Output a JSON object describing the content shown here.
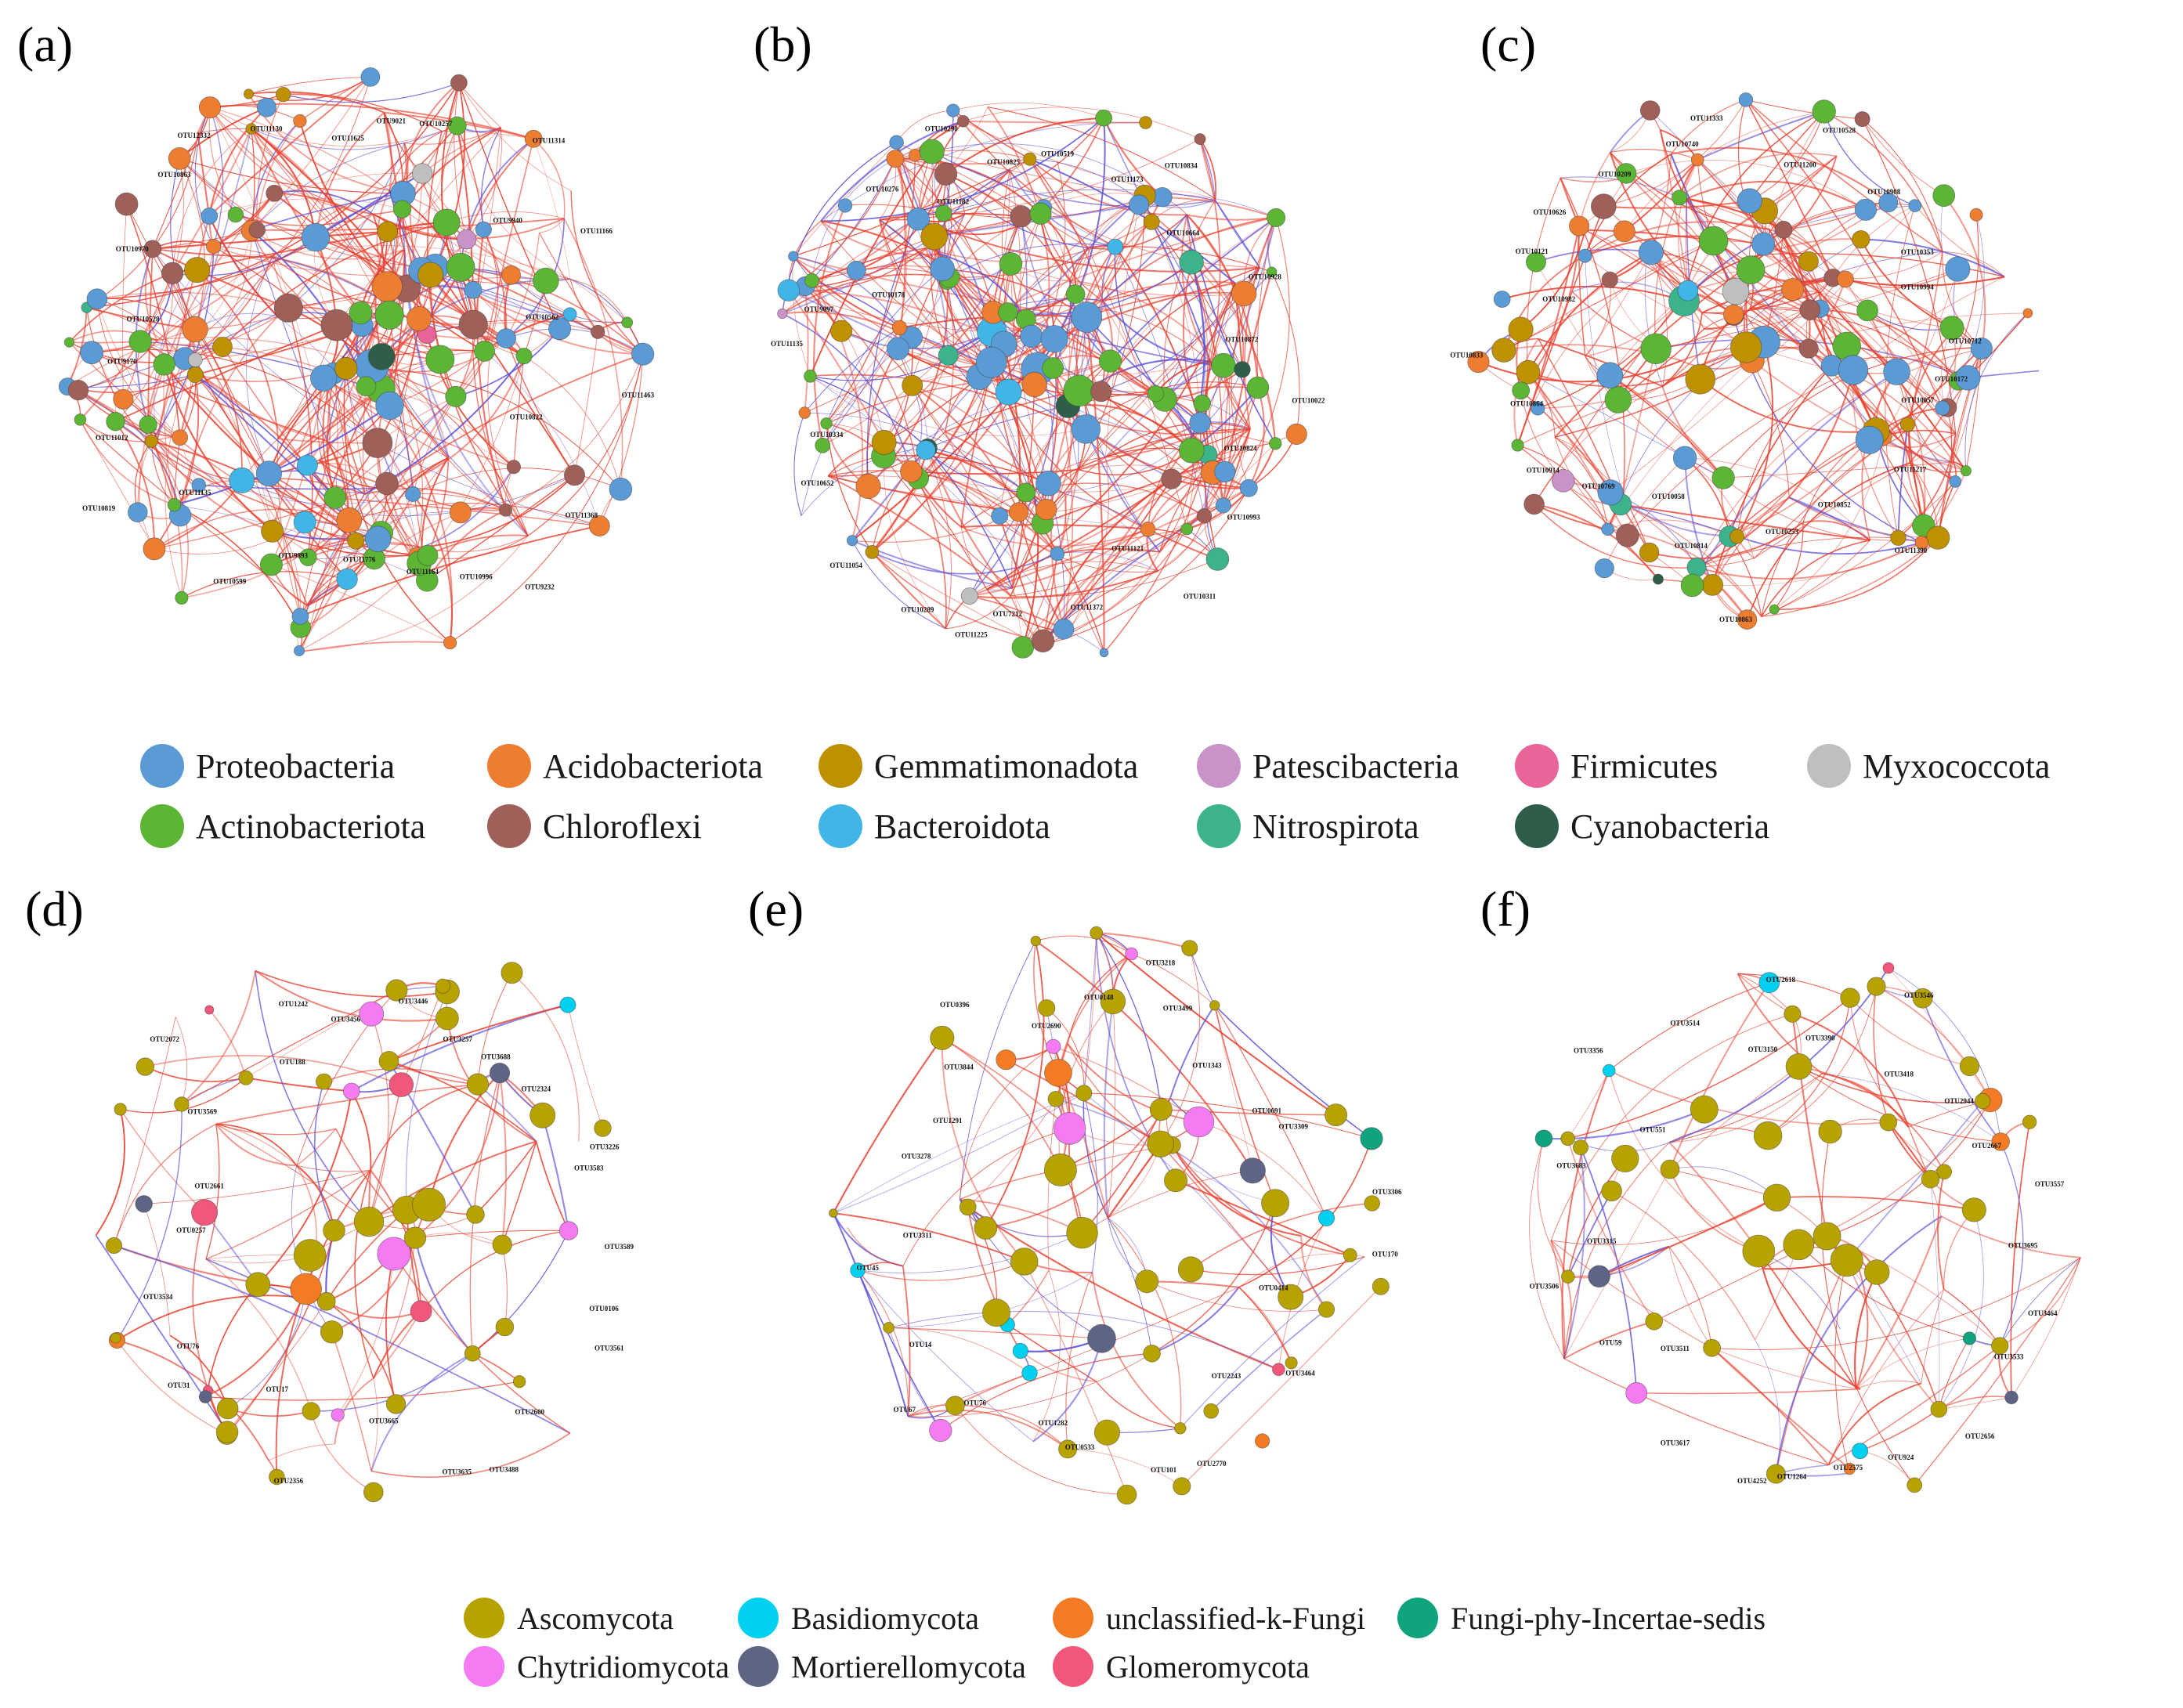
{
  "figure": {
    "panels": [
      {
        "letter": "(a)",
        "kingdom": "bacteria",
        "seed": 11,
        "nodes": 150,
        "edges": 620,
        "blue_ratio": 0.14,
        "labels": [
          "OTU11463",
          "OTU10822",
          "OTU11368",
          "OTU9232",
          "OTU10996",
          "OTU11164",
          "OTU11776",
          "OTU9893",
          "OTU10599",
          "OTU11135",
          "OTU10819",
          "OTU11012",
          "OTU9170",
          "OTU10528",
          "OTU10970",
          "OTU10863",
          "OTU12332",
          "OTU11130",
          "OTU11625",
          "OTU9021",
          "OTU10257",
          "OTU11314",
          "OTU9940",
          "OTU11166",
          "OTU10562"
        ]
      },
      {
        "letter": "(b)",
        "kingdom": "bacteria",
        "seed": 23,
        "nodes": 150,
        "edges": 640,
        "blue_ratio": 0.22,
        "labels": [
          "OTU10022",
          "OTU10824",
          "OTU10993",
          "OTU10311",
          "OTU11121",
          "OTU11372",
          "OTU7212",
          "OTU11225",
          "OTU10289",
          "OTU11054",
          "OTU10652",
          "OTU10334",
          "OTU11135",
          "OTU9097",
          "OTU10178",
          "OTU10276",
          "OTU11182",
          "OTU10290",
          "OTU10825",
          "OTU10519",
          "OTU11173",
          "OTU10834",
          "OTU10664",
          "OTU10928",
          "OTU10872"
        ]
      },
      {
        "letter": "(c)",
        "kingdom": "bacteria",
        "seed": 37,
        "nodes": 130,
        "edges": 420,
        "blue_ratio": 0.1,
        "labels": [
          "OTU10172",
          "OTU10057",
          "OTU11217",
          "OTU11390",
          "OTU10852",
          "OTU10253",
          "OTU10863",
          "OTU10814",
          "OTU10058",
          "OTU10769",
          "OTU10914",
          "OTU10864",
          "OTU10833",
          "OTU10982",
          "OTU10121",
          "OTU10626",
          "OTU10209",
          "OTU10740",
          "OTU11333",
          "OTU11200",
          "OTU10528",
          "OTU10908",
          "OTU10353",
          "OTU10994",
          "OTU10712"
        ]
      },
      {
        "letter": "(d)",
        "kingdom": "fungi",
        "seed": 51,
        "nodes": 70,
        "edges": 150,
        "blue_ratio": 0.18,
        "labels": [
          "OTU3589",
          "OTU0106",
          "OTU3561",
          "OTU2600",
          "OTU3488",
          "OTU3635",
          "OTU3665",
          "OTU2356",
          "OTU17",
          "OTU31",
          "OTU76",
          "OTU3534",
          "OTU0257",
          "OTU2661",
          "OTU3569",
          "OTU2072",
          "OTU188",
          "OTU1242",
          "OTU3456",
          "OTU3446",
          "OTU3257",
          "OTU3688",
          "OTU2324",
          "OTU3226",
          "OTU3583"
        ]
      },
      {
        "letter": "(e)",
        "kingdom": "fungi",
        "seed": 67,
        "nodes": 70,
        "edges": 160,
        "blue_ratio": 0.22,
        "labels": [
          "OTU170",
          "OTU0414",
          "OTU3464",
          "OTU2243",
          "OTU2770",
          "OTU101",
          "OTU0533",
          "OTU1282",
          "OTU76",
          "OTU67",
          "OTU14",
          "OTU45",
          "OTU3311",
          "OTU3278",
          "OTU1291",
          "OTU3844",
          "OTU0396",
          "OTU2690",
          "OTU0148",
          "OTU3218",
          "OTU3499",
          "OTU1343",
          "OTU0691",
          "OTU3309",
          "OTU3306"
        ]
      },
      {
        "letter": "(f)",
        "kingdom": "fungi",
        "seed": 83,
        "nodes": 65,
        "edges": 150,
        "blue_ratio": 0.16,
        "labels": [
          "OTU3695",
          "OTU3464",
          "OTU3533",
          "OTU2656",
          "OTU924",
          "OTU2575",
          "OTU1264",
          "OTU4252",
          "OTU3617",
          "OTU3511",
          "OTU59",
          "OTU3506",
          "OTU3315",
          "OTU3683",
          "OTU551",
          "OTU3356",
          "OTU3514",
          "OTU3150",
          "OTU2618",
          "OTU3390",
          "OTU3546",
          "OTU3418",
          "OTU2944",
          "OTU2667",
          "OTU3557"
        ]
      }
    ]
  },
  "legend_bacteria": [
    {
      "label": "Proteobacteria",
      "color": "#5B9BD5"
    },
    {
      "label": "Acidobacteriota",
      "color": "#ED7D31"
    },
    {
      "label": "Gemmatimonadota",
      "color": "#BF9000"
    },
    {
      "label": "Patescibacteria",
      "color": "#C992C9"
    },
    {
      "label": "Firmicutes",
      "color": "#E8649B"
    },
    {
      "label": "Myxococcota",
      "color": "#BFBFBF"
    },
    {
      "label": "Actinobacteriota",
      "color": "#5DB535"
    },
    {
      "label": "Chloroflexi",
      "color": "#A0605A"
    },
    {
      "label": "Bacteroidota",
      "color": "#41B6E6"
    },
    {
      "label": "Nitrospirota",
      "color": "#3CB38A"
    },
    {
      "label": "Cyanobacteria",
      "color": "#2E5E4A"
    }
  ],
  "legend_fungi": [
    {
      "label": "Ascomycota",
      "color": "#B8A200"
    },
    {
      "label": "Basidiomycota",
      "color": "#00D0F0"
    },
    {
      "label": "unclassified-k-Fungi",
      "color": "#F47B26"
    },
    {
      "label": "Fungi-phy-Incertae-sedis",
      "color": "#10A37F"
    },
    {
      "label": "Chytridiomycota",
      "color": "#F47BF2"
    },
    {
      "label": "Mortierellomycota",
      "color": "#5E6486"
    },
    {
      "label": "Glomeromycota",
      "color": "#F0577A"
    }
  ],
  "edge_colors": {
    "positive": "#E8412F",
    "negative": "#5A4FD8"
  }
}
